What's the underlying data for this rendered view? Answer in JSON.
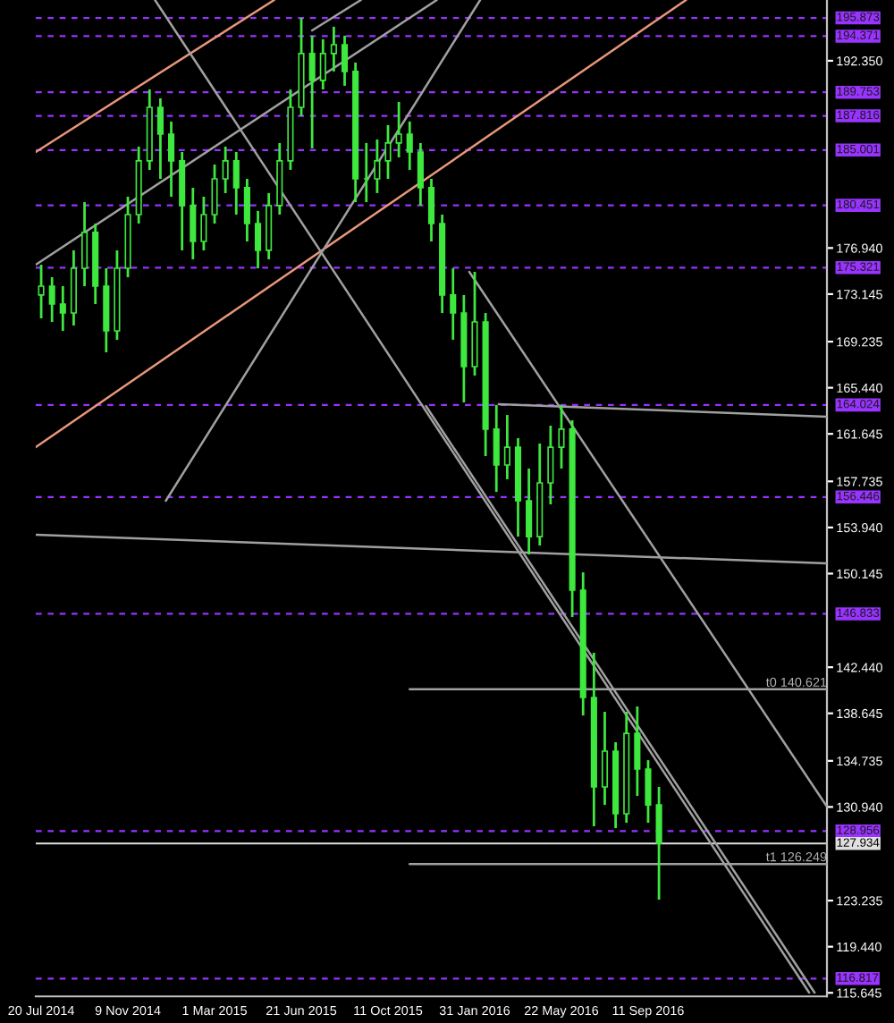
{
  "chart_data": {
    "type": "candlestick",
    "x": [
      "2014-07-20",
      "2014-08-03",
      "2014-08-17",
      "2014-08-31",
      "2014-09-14",
      "2014-09-28",
      "2014-10-12",
      "2014-10-26",
      "2014-11-09",
      "2014-11-23",
      "2014-12-07",
      "2014-12-21",
      "2015-01-04",
      "2015-01-18",
      "2015-02-01",
      "2015-02-15",
      "2015-03-01",
      "2015-03-15",
      "2015-03-29",
      "2015-04-12",
      "2015-04-26",
      "2015-05-10",
      "2015-05-24",
      "2015-06-07",
      "2015-06-21",
      "2015-07-05",
      "2015-07-19",
      "2015-08-02",
      "2015-08-16",
      "2015-08-30",
      "2015-09-13",
      "2015-09-27",
      "2015-10-11",
      "2015-10-25",
      "2015-11-08",
      "2015-11-22",
      "2015-12-06",
      "2015-12-20",
      "2016-01-03",
      "2016-01-17",
      "2016-01-31",
      "2016-02-14",
      "2016-02-28",
      "2016-03-13",
      "2016-03-27",
      "2016-04-10",
      "2016-04-24",
      "2016-05-08",
      "2016-05-22",
      "2016-06-05",
      "2016-06-19",
      "2016-07-03",
      "2016-07-17",
      "2016-07-31",
      "2016-08-14",
      "2016-08-28",
      "2016-09-11",
      "2016-09-25"
    ],
    "ohlc": [
      [
        173.07,
        175.57,
        171.15,
        173.8
      ],
      [
        173.8,
        174.54,
        170.86,
        172.33
      ],
      [
        172.33,
        173.8,
        170.12,
        171.59
      ],
      [
        171.59,
        176.75,
        170.56,
        175.27
      ],
      [
        175.27,
        180.72,
        173.8,
        178.22
      ],
      [
        178.22,
        178.95,
        172.33,
        173.8
      ],
      [
        173.8,
        175.27,
        168.36,
        170.12
      ],
      [
        170.12,
        176.75,
        169.39,
        175.27
      ],
      [
        175.27,
        181.16,
        174.54,
        179.69
      ],
      [
        179.69,
        185.28,
        178.95,
        184.11
      ],
      [
        184.11,
        189.99,
        183.37,
        188.52
      ],
      [
        188.52,
        189.26,
        182.63,
        186.31
      ],
      [
        186.31,
        187.35,
        181.16,
        184.11
      ],
      [
        184.11,
        184.84,
        176.75,
        180.43
      ],
      [
        180.43,
        181.9,
        176.01,
        177.48
      ],
      [
        177.48,
        181.16,
        176.75,
        179.69
      ],
      [
        179.69,
        183.81,
        178.95,
        182.63
      ],
      [
        182.63,
        185.28,
        181.46,
        184.11
      ],
      [
        184.11,
        184.84,
        179.69,
        181.9
      ],
      [
        181.9,
        182.63,
        177.48,
        178.95
      ],
      [
        178.95,
        179.99,
        175.27,
        176.75
      ],
      [
        176.75,
        181.46,
        176.01,
        180.43
      ],
      [
        180.43,
        185.58,
        179.69,
        184.11
      ],
      [
        184.11,
        189.99,
        183.37,
        188.52
      ],
      [
        188.52,
        195.87,
        187.79,
        192.94
      ],
      [
        192.94,
        194.41,
        185.14,
        190.73
      ],
      [
        190.73,
        194.12,
        189.99,
        192.94
      ],
      [
        192.94,
        195.15,
        191.47,
        193.67
      ],
      [
        193.67,
        194.41,
        190.29,
        191.47
      ],
      [
        191.47,
        192.2,
        180.72,
        182.63
      ],
      [
        182.63,
        185.58,
        180.72,
        182.63
      ],
      [
        182.63,
        185.87,
        181.46,
        184.11
      ],
      [
        184.11,
        187.05,
        182.63,
        185.58
      ],
      [
        185.58,
        188.96,
        184.4,
        186.31
      ],
      [
        186.31,
        187.35,
        183.37,
        184.84
      ],
      [
        184.84,
        185.58,
        180.43,
        181.9
      ],
      [
        181.9,
        182.63,
        177.48,
        178.95
      ],
      [
        178.95,
        179.69,
        171.59,
        173.07
      ],
      [
        173.07,
        175.27,
        169.39,
        171.59
      ],
      [
        171.59,
        173.07,
        164.23,
        167.18
      ],
      [
        167.18,
        174.98,
        166.44,
        170.86
      ],
      [
        170.86,
        171.59,
        159.82,
        162.03
      ],
      [
        162.03,
        164.02,
        156.87,
        159.08
      ],
      [
        159.08,
        163.2,
        157.91,
        160.55
      ],
      [
        160.55,
        161.29,
        153.19,
        156.14
      ],
      [
        156.14,
        158.79,
        151.72,
        153.19
      ],
      [
        153.19,
        160.85,
        152.46,
        157.61
      ],
      [
        157.61,
        162.32,
        155.84,
        160.55
      ],
      [
        160.55,
        164.02,
        158.79,
        162.03
      ],
      [
        162.03,
        162.76,
        146.57,
        148.78
      ],
      [
        148.78,
        150.25,
        138.47,
        139.95
      ],
      [
        139.95,
        143.63,
        129.35,
        132.59
      ],
      [
        132.59,
        138.77,
        131.11,
        135.53
      ],
      [
        135.53,
        136.27,
        129.2,
        130.38
      ],
      [
        130.38,
        138.77,
        129.64,
        137.0
      ],
      [
        137.0,
        139.21,
        131.85,
        134.06
      ],
      [
        134.06,
        134.79,
        129.64,
        131.11
      ],
      [
        131.11,
        132.59,
        123.31,
        127.934
      ]
    ],
    "color": "#3ee83e",
    "series": [
      {
        "type": "line",
        "color": "#e9967a",
        "x": [
          "2014-07-13",
          "2015-05-17"
        ],
        "values": [
          184.84,
          197.35
        ]
      },
      {
        "type": "line",
        "color": "#e9967a",
        "x": [
          "2014-07-13",
          "2016-10-30"
        ],
        "values": [
          160.55,
          197.35
        ]
      },
      {
        "type": "line",
        "color": "#a0a0a0",
        "x": [
          "2014-07-13",
          "2015-12-13"
        ],
        "values": [
          175.57,
          197.35
        ]
      },
      {
        "type": "line",
        "color": "#a0a0a0",
        "x": [
          "2015-07-05",
          "2015-09-06"
        ],
        "values": [
          194.85,
          197.35
        ]
      },
      {
        "type": "line",
        "color": "#a0a0a0",
        "x": [
          "2014-12-28",
          "2016-02-07"
        ],
        "values": [
          156.14,
          197.35
        ]
      },
      {
        "type": "line",
        "color": "#a0a0a0",
        "x": [
          "2014-12-14",
          "2017-04-07"
        ],
        "values": [
          197.35,
          115.66
        ]
      },
      {
        "type": "line",
        "color": "#a0a0a0",
        "x": [
          "2016-01-24",
          "2017-04-30"
        ],
        "values": [
          174.98,
          130.97
        ]
      },
      {
        "type": "line",
        "color": "#a0a0a0",
        "x": [
          "2015-11-29",
          "2017-04-14"
        ],
        "values": [
          163.94,
          115.66
        ]
      },
      {
        "type": "line",
        "color": "#a0a0a0",
        "x": [
          "2016-03-02",
          "2017-04-30"
        ],
        "values": [
          164.09,
          163.06
        ]
      },
      {
        "type": "line",
        "color": "#a0a0a0",
        "x": [
          "2014-07-13",
          "2017-04-30"
        ],
        "values": [
          153.34,
          150.99
        ]
      },
      {
        "type": "line",
        "color": "#a0a0a0",
        "x": [
          "2015-11-08",
          "2017-04-30"
        ],
        "values": [
          140.621,
          140.621
        ]
      },
      {
        "type": "line",
        "color": "#a0a0a0",
        "x": [
          "2015-11-08",
          "2017-04-30"
        ],
        "values": [
          126.249,
          126.249
        ]
      }
    ],
    "annotations": [
      {
        "text": "t0 140.621",
        "x": "2017-04-30",
        "y": 140.621
      },
      {
        "text": "t1 126.249",
        "x": "2017-04-30",
        "y": 126.249
      }
    ],
    "ref_lines": [
      {
        "axis": "y",
        "value": 195.873,
        "label": "195.873",
        "color": "#9933ff",
        "line_style": "dashed"
      },
      {
        "axis": "y",
        "value": 194.371,
        "label": "194.371",
        "color": "#9933ff",
        "line_style": "dashed"
      },
      {
        "axis": "y",
        "value": 189.753,
        "label": "189.753",
        "color": "#9933ff",
        "line_style": "dashed"
      },
      {
        "axis": "y",
        "value": 187.816,
        "label": "187.816",
        "color": "#9933ff",
        "line_style": "dashed"
      },
      {
        "axis": "y",
        "value": 185.001,
        "label": "185.001",
        "color": "#9933ff",
        "line_style": "dashed"
      },
      {
        "axis": "y",
        "value": 180.451,
        "label": "180.451",
        "color": "#9933ff",
        "line_style": "dashed"
      },
      {
        "axis": "y",
        "value": 175.321,
        "label": "175.321",
        "color": "#9933ff",
        "line_style": "dashed"
      },
      {
        "axis": "y",
        "value": 164.024,
        "label": "164.024",
        "color": "#9933ff",
        "line_style": "dashed"
      },
      {
        "axis": "y",
        "value": 156.446,
        "label": "156.446",
        "color": "#9933ff",
        "line_style": "dashed"
      },
      {
        "axis": "y",
        "value": 146.833,
        "label": "146.833",
        "color": "#9933ff",
        "line_style": "dashed"
      },
      {
        "axis": "y",
        "value": 128.956,
        "label": "128.956",
        "color": "#9933ff",
        "line_style": "dashed"
      },
      {
        "axis": "y",
        "value": 127.934,
        "label": "127.934",
        "color": "#e0e0e0",
        "line_style": "solid"
      },
      {
        "axis": "y",
        "value": 116.817,
        "label": "116.817",
        "color": "#9933ff",
        "line_style": "dashed"
      }
    ],
    "xlim": [
      "2014-07-13",
      "2017-04-30"
    ],
    "xticks": [
      {
        "value": "2014-07-20",
        "label": "20 Jul 2014"
      },
      {
        "value": "2014-11-09",
        "label": "9 Nov 2014"
      },
      {
        "value": "2015-03-01",
        "label": "1 Mar 2015"
      },
      {
        "value": "2015-06-21",
        "label": "21 Jun 2015"
      },
      {
        "value": "2015-10-11",
        "label": "11 Oct 2015"
      },
      {
        "value": "2016-01-31",
        "label": "31 Jan 2016"
      },
      {
        "value": "2016-05-22",
        "label": "22 May 2016"
      },
      {
        "value": "2016-09-11",
        "label": "11 Sep 2016"
      }
    ],
    "ylim": [
      115.35,
      197.35
    ],
    "yticks": [
      {
        "value": 192.35,
        "label": "192.350"
      },
      {
        "value": 176.94,
        "label": "176.940"
      },
      {
        "value": 173.145,
        "label": "173.145"
      },
      {
        "value": 169.235,
        "label": "169.235"
      },
      {
        "value": 165.44,
        "label": "165.440"
      },
      {
        "value": 161.645,
        "label": "161.645"
      },
      {
        "value": 157.735,
        "label": "157.735"
      },
      {
        "value": 153.94,
        "label": "153.940"
      },
      {
        "value": 150.145,
        "label": "150.145"
      },
      {
        "value": 142.44,
        "label": "142.440"
      },
      {
        "value": 138.645,
        "label": "138.645"
      },
      {
        "value": 134.735,
        "label": "134.735"
      },
      {
        "value": 130.94,
        "label": "130.940"
      },
      {
        "value": 123.235,
        "label": "123.235"
      },
      {
        "value": 119.44,
        "label": "119.440"
      },
      {
        "value": 115.645,
        "label": "115.645"
      }
    ]
  }
}
